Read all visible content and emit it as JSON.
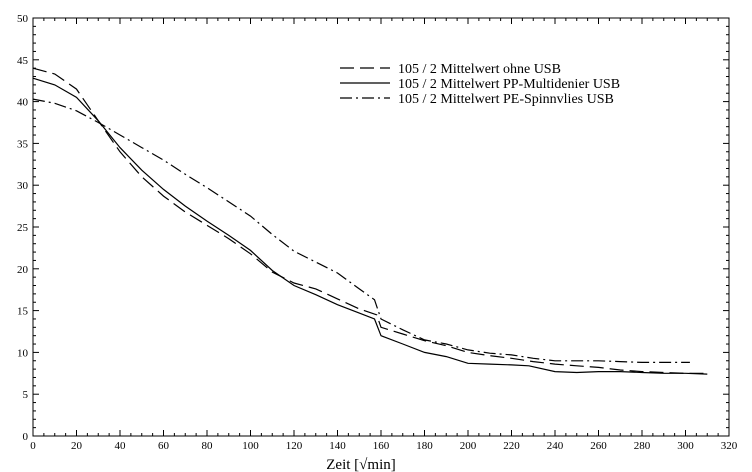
{
  "chart_data": {
    "type": "line",
    "title": "",
    "xlabel": "Zeit  [√min]",
    "ylabel": "",
    "xlim": [
      0,
      320
    ],
    "ylim": [
      0,
      50
    ],
    "x_ticks": [
      0,
      20,
      40,
      60,
      80,
      100,
      120,
      140,
      160,
      180,
      200,
      220,
      240,
      260,
      280,
      300,
      320
    ],
    "y_ticks": [
      0,
      5,
      10,
      15,
      20,
      25,
      30,
      35,
      40,
      45,
      50
    ],
    "grid": false,
    "legend_position": "top-right",
    "series": [
      {
        "name": "105 / 2  Mittelwert ohne USB",
        "dash": "long-dash",
        "points": [
          [
            0,
            44
          ],
          [
            10,
            43.3
          ],
          [
            20,
            41.5
          ],
          [
            30,
            37.7
          ],
          [
            40,
            34
          ],
          [
            50,
            31
          ],
          [
            60,
            28.7
          ],
          [
            70,
            26.8
          ],
          [
            80,
            25.2
          ],
          [
            90,
            23.6
          ],
          [
            100,
            21.8
          ],
          [
            110,
            19.6
          ],
          [
            120,
            18.3
          ],
          [
            130,
            17.6
          ],
          [
            140,
            16.4
          ],
          [
            150,
            15.2
          ],
          [
            158,
            14.5
          ],
          [
            160,
            13
          ],
          [
            170,
            12.2
          ],
          [
            180,
            11.4
          ],
          [
            190,
            10.8
          ],
          [
            200,
            10
          ],
          [
            210,
            9.6
          ],
          [
            220,
            9.3
          ],
          [
            230,
            8.9
          ],
          [
            240,
            8.6
          ],
          [
            250,
            8.4
          ],
          [
            260,
            8.2
          ],
          [
            270,
            7.9
          ],
          [
            280,
            7.7
          ],
          [
            290,
            7.6
          ],
          [
            300,
            7.5
          ],
          [
            310,
            7.5
          ]
        ]
      },
      {
        "name": "105 / 2  Mittelwert PP-Multidenier USB",
        "dash": "solid",
        "points": [
          [
            0,
            42.8
          ],
          [
            10,
            42
          ],
          [
            20,
            40.5
          ],
          [
            30,
            37.7
          ],
          [
            40,
            34.5
          ],
          [
            50,
            31.8
          ],
          [
            60,
            29.5
          ],
          [
            70,
            27.5
          ],
          [
            80,
            25.7
          ],
          [
            90,
            24
          ],
          [
            100,
            22.2
          ],
          [
            110,
            19.8
          ],
          [
            120,
            18
          ],
          [
            130,
            16.9
          ],
          [
            140,
            15.7
          ],
          [
            150,
            14.7
          ],
          [
            157,
            14
          ],
          [
            160,
            12
          ],
          [
            170,
            11
          ],
          [
            180,
            10
          ],
          [
            190,
            9.5
          ],
          [
            200,
            8.7
          ],
          [
            210,
            8.6
          ],
          [
            220,
            8.5
          ],
          [
            228,
            8.4
          ],
          [
            240,
            7.7
          ],
          [
            250,
            7.6
          ],
          [
            260,
            7.7
          ],
          [
            270,
            7.7
          ],
          [
            280,
            7.6
          ],
          [
            290,
            7.5
          ],
          [
            300,
            7.5
          ],
          [
            310,
            7.4
          ]
        ]
      },
      {
        "name": "105 / 2  Mittelwert PE-Spinnvlies USB",
        "dash": "dash-dot",
        "points": [
          [
            0,
            40.3
          ],
          [
            10,
            39.8
          ],
          [
            20,
            38.9
          ],
          [
            30,
            37.5
          ],
          [
            40,
            36
          ],
          [
            50,
            34.5
          ],
          [
            60,
            33
          ],
          [
            70,
            31.3
          ],
          [
            80,
            29.7
          ],
          [
            90,
            28
          ],
          [
            100,
            26.3
          ],
          [
            110,
            24.1
          ],
          [
            120,
            22.1
          ],
          [
            130,
            20.8
          ],
          [
            140,
            19.5
          ],
          [
            150,
            17.6
          ],
          [
            157,
            16.3
          ],
          [
            160,
            14
          ],
          [
            170,
            12.7
          ],
          [
            180,
            11.5
          ],
          [
            190,
            11
          ],
          [
            200,
            10.3
          ],
          [
            210,
            9.9
          ],
          [
            220,
            9.7
          ],
          [
            230,
            9.3
          ],
          [
            240,
            9
          ],
          [
            250,
            9
          ],
          [
            260,
            9
          ],
          [
            270,
            8.9
          ],
          [
            280,
            8.8
          ],
          [
            290,
            8.8
          ],
          [
            302,
            8.8
          ]
        ]
      }
    ]
  }
}
